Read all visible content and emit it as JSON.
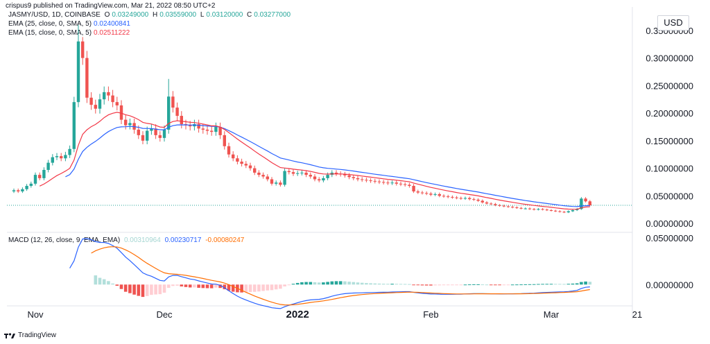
{
  "meta": {
    "published": "crispus9 published on TradingView.com, Mar 21, 2022 08:50 UTC+2"
  },
  "legend": {
    "symbol": "JASMY/USD, 1D, COINBASE",
    "o_label": "O",
    "o": "0.03249000",
    "h_label": "H",
    "h": "0.03559000",
    "l_label": "L",
    "l": "0.03120000",
    "c_label": "C",
    "c": "0.03277000",
    "ema25_label": "EMA (25, close, 0, SMA, 5)",
    "ema25": "0.02400841",
    "ema15_label": "EMA (15, close, 0, SMA, 5)",
    "ema15": "0.02511222",
    "macd_label": "MACD (12, 26, close, 9, EMA, EMA)",
    "macd_hist": "0.00310964",
    "macd_line": "0.00230717",
    "macd_signal": "-0.00080247"
  },
  "footer": {
    "brand": "TradingView"
  },
  "colors": {
    "up": "#26a69a",
    "down": "#ef5350",
    "ema25": "#2962ff",
    "ema15": "#f23645",
    "macd": "#2962ff",
    "signal": "#ff6d00",
    "hist_up_strong": "#26a69a",
    "hist_up_weak": "#b2dfdb",
    "hist_down_strong": "#ef5350",
    "hist_down_weak": "#ffcdd2"
  },
  "chart_data": [
    {
      "type": "candlestick",
      "title": "JASMY/USD, 1D, COINBASE",
      "unit": "USD",
      "ylim": [
        -0.015,
        0.38
      ],
      "y_ticks": [
        "0.35000000",
        "0.30000000",
        "0.25000000",
        "0.20000000",
        "0.15000000",
        "0.10000000",
        "0.05000000",
        "0.00000000"
      ],
      "x_ticks": [
        "Nov",
        "Dec",
        "2022",
        "Feb",
        "Mar",
        "21"
      ],
      "last_price": 0.03277,
      "ohlc": [],
      "overlays": [
        {
          "name": "EMA (25, close, 0, SMA, 5)",
          "values": []
        },
        {
          "name": "EMA (15, close, 0, SMA, 5)",
          "values": []
        }
      ]
    },
    {
      "type": "macd",
      "title": "MACD (12, 26, close, 9, EMA, EMA)",
      "ylim": [
        -0.022,
        0.055
      ],
      "y_ticks": [
        "0.05000000",
        "0.00000000"
      ],
      "histogram": [],
      "macd": [],
      "signal": []
    }
  ]
}
